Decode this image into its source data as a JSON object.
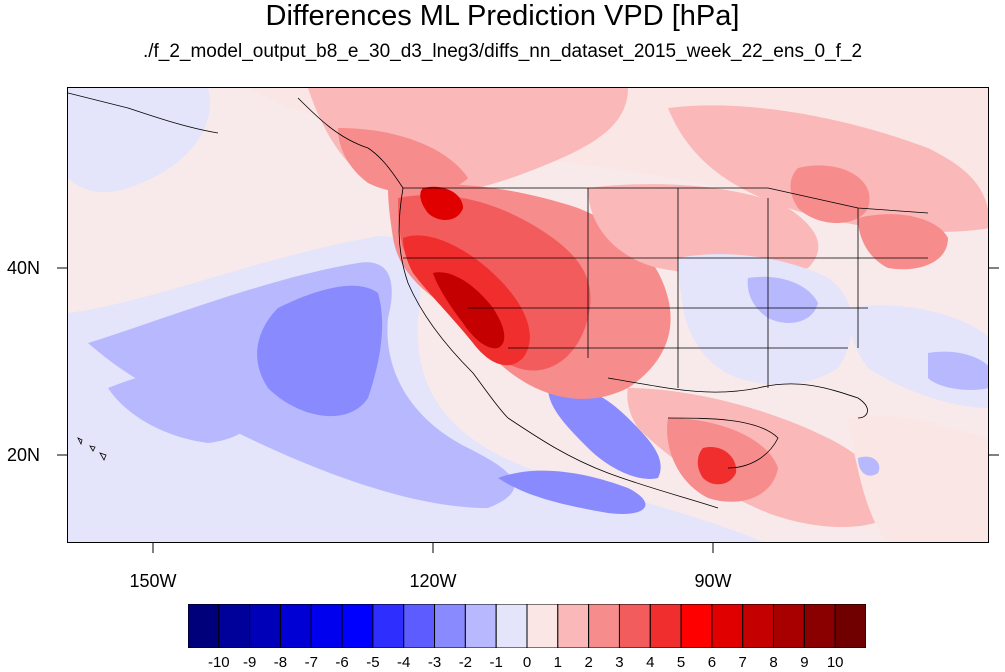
{
  "title": "Differences ML Prediction VPD [hPa]",
  "subtitle": "./f_2_model_output_b8_e_30_d3_lneg3/diffs_nn_dataset_2015_week_22_ens_0_f_2",
  "lat_labels": [
    "40N",
    "20N"
  ],
  "lon_labels": [
    "150W",
    "120W",
    "90W"
  ],
  "colorbar": {
    "labels": [
      "-10",
      "-9",
      "-8",
      "-7",
      "-6",
      "-5",
      "-4",
      "-3",
      "-2",
      "-1",
      "0",
      "1",
      "2",
      "3",
      "4",
      "5",
      "6",
      "7",
      "8",
      "9",
      "10"
    ],
    "colors": [
      "#00007a",
      "#00009a",
      "#0000b8",
      "#0000d4",
      "#0000ee",
      "#0000ff",
      "#2e2eff",
      "#5c5cff",
      "#8a8aff",
      "#b8b8ff",
      "#e4e4fa",
      "#fbe6e6",
      "#fbb8b8",
      "#f78c8c",
      "#f35c5c",
      "#f02e2e",
      "#ff0000",
      "#e00000",
      "#c40000",
      "#a80000",
      "#8a0000",
      "#700000"
    ]
  },
  "colors": {
    "background": "#ffffff",
    "frame": "#000000",
    "coastline": "#000000"
  }
}
